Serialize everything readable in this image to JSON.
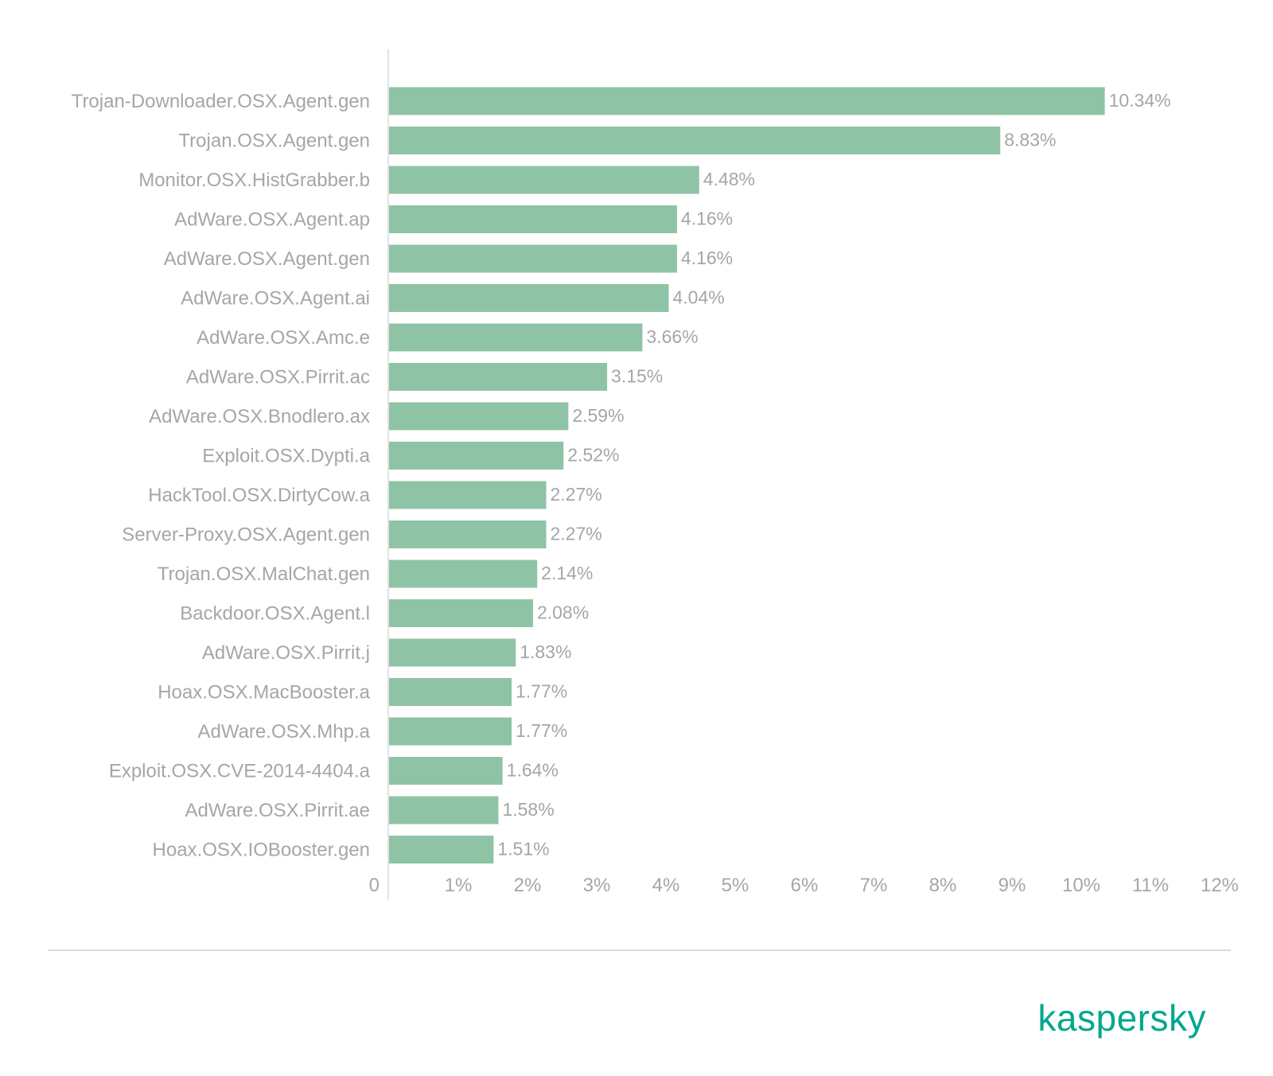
{
  "chart_data": {
    "type": "bar",
    "orientation": "horizontal",
    "categories": [
      "Trojan-Downloader.OSX.Agent.gen",
      "Trojan.OSX.Agent.gen",
      "Monitor.OSX.HistGrabber.b",
      "AdWare.OSX.Agent.ap",
      "AdWare.OSX.Agent.gen",
      "AdWare.OSX.Agent.ai",
      "AdWare.OSX.Amc.e",
      "AdWare.OSX.Pirrit.ac",
      "AdWare.OSX.Bnodlero.ax",
      "Exploit.OSX.Dypti.a",
      "HackTool.OSX.DirtyCow.a",
      "Server-Proxy.OSX.Agent.gen",
      "Trojan.OSX.MalChat.gen",
      "Backdoor.OSX.Agent.l",
      "AdWare.OSX.Pirrit.j",
      "Hoax.OSX.MacBooster.a",
      "AdWare.OSX.Mhp.a",
      "Exploit.OSX.CVE-2014-4404.a",
      "AdWare.OSX.Pirrit.ae",
      "Hoax.OSX.IOBooster.gen"
    ],
    "values": [
      10.34,
      8.83,
      4.48,
      4.16,
      4.16,
      4.04,
      3.66,
      3.15,
      2.59,
      2.52,
      2.27,
      2.27,
      2.14,
      2.08,
      1.83,
      1.77,
      1.77,
      1.64,
      1.58,
      1.51
    ],
    "value_labels": [
      "10.34%",
      "8.83%",
      "4.48%",
      "4.16%",
      "4.16%",
      "4.04%",
      "3.66%",
      "3.15%",
      "2.59%",
      "2.52%",
      "2.27%",
      "2.27%",
      "2.14%",
      "2.08%",
      "1.83%",
      "1.77%",
      "1.77%",
      "1.64%",
      "1.58%",
      "1.51%"
    ],
    "xlim": [
      0,
      12
    ],
    "x_ticks": [
      0,
      1,
      2,
      3,
      4,
      5,
      6,
      7,
      8,
      9,
      10,
      11,
      12
    ],
    "x_tick_labels": [
      "0",
      "1%",
      "2%",
      "3%",
      "4%",
      "5%",
      "6%",
      "7%",
      "8%",
      "9%",
      "10%",
      "11%",
      "12%"
    ],
    "title": "",
    "xlabel": "",
    "ylabel": "",
    "grid": false,
    "legend": "none",
    "bar_color": "#8fc3a5"
  },
  "footer": {
    "brand": "kaspersky",
    "brand_color": "#00a88e"
  }
}
